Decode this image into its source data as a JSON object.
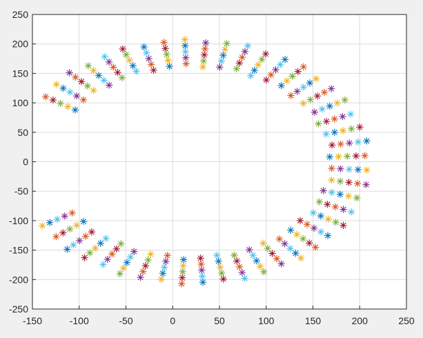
{
  "chart_data": {
    "type": "scatter",
    "marker": "asterisk",
    "xlim": [
      -150,
      250
    ],
    "ylim": [
      -250,
      250
    ],
    "xticks": [
      -150,
      -100,
      -50,
      0,
      50,
      100,
      150,
      200,
      250
    ],
    "yticks": [
      -250,
      -200,
      -150,
      -100,
      -50,
      0,
      50,
      100,
      150,
      200,
      250
    ],
    "xtick_labels": [
      "-150",
      "-100",
      "-50",
      "0",
      "50",
      "100",
      "150",
      "200",
      "250"
    ],
    "ytick_labels": [
      "-250",
      "-200",
      "-150",
      "-100",
      "-50",
      "0",
      "50",
      "100",
      "150",
      "200",
      "250"
    ],
    "grid": true,
    "shape": {
      "description_free": "",
      "center": [
        20,
        0
      ],
      "outer_radius_x": 188,
      "outer_radius_y": 205,
      "band_radial_steps": [
        0.8,
        0.85,
        0.9,
        0.95,
        1.0
      ],
      "start_angle_deg": 147,
      "end_angle_deg": 212,
      "points_per_arc": 44
    },
    "series_colors": [
      "#0072BD",
      "#D95319",
      "#EDB120",
      "#7E2F8E",
      "#77AC30",
      "#4DBEEE",
      "#A2142F"
    ]
  }
}
